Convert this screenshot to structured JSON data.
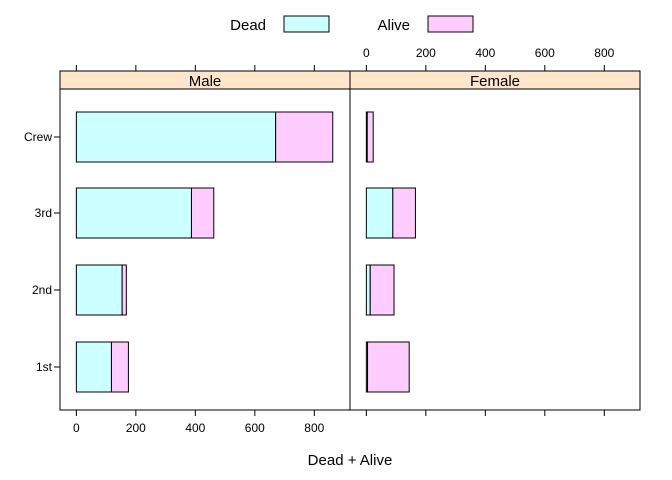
{
  "chart_data": {
    "type": "bar",
    "orientation": "horizontal",
    "stacked": true,
    "categories": [
      "Crew",
      "3rd",
      "2nd",
      "1st"
    ],
    "panels": [
      {
        "name": "Male",
        "series": [
          {
            "name": "Dead",
            "values": [
              670,
              387,
              154,
              118
            ]
          },
          {
            "name": "Alive",
            "values": [
              192,
              75,
              14,
              57
            ]
          }
        ]
      },
      {
        "name": "Female",
        "series": [
          {
            "name": "Dead",
            "values": [
              3,
              89,
              13,
              4
            ]
          },
          {
            "name": "Alive",
            "values": [
              20,
              76,
              80,
              140
            ]
          }
        ]
      }
    ],
    "xlabel": "Dead + Alive",
    "ylabel": "",
    "xlim": [
      -55,
      920
    ],
    "x_ticks": [
      0,
      200,
      400,
      600,
      800
    ],
    "legend": {
      "position": "top",
      "entries": [
        "Dead",
        "Alive"
      ]
    },
    "colors": {
      "Dead": "#ccffff",
      "Alive": "#ffccff",
      "strip": "#ffe5cc"
    },
    "grid": false
  }
}
